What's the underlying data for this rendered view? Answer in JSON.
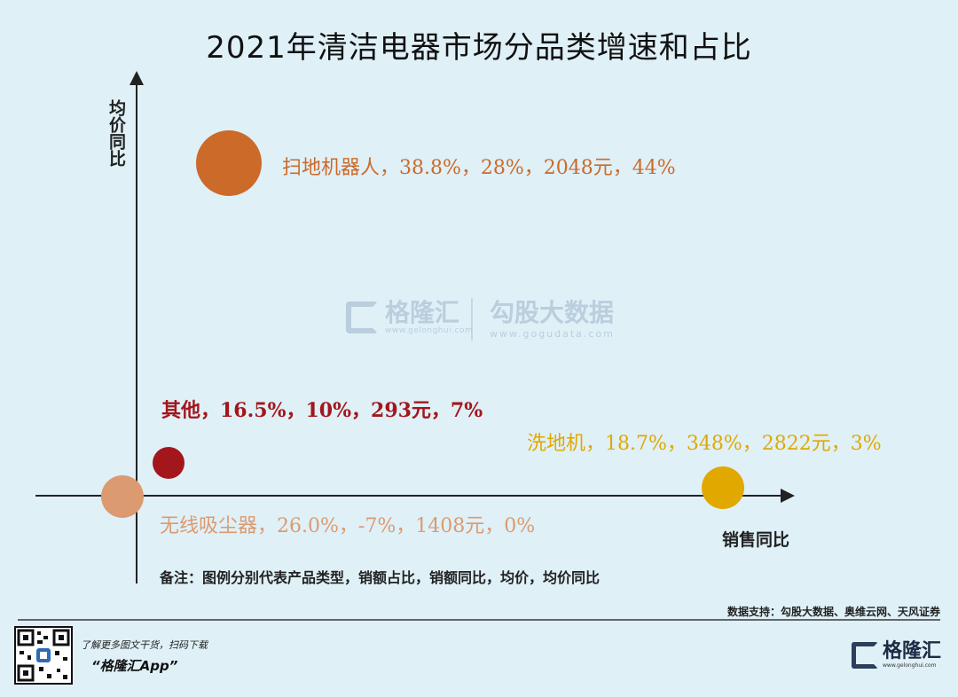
{
  "title": "2021年清洁电器市场分品类增速和占比",
  "chart_data": {
    "type": "scatter",
    "xlabel": "销售同比",
    "ylabel": "均价同比",
    "points": [
      {
        "label": "扫地机器人，38.8%，28%，2048元，44%",
        "x": 38.8,
        "y": 28,
        "price": 2048,
        "share": 44,
        "color": "#cc6a2a"
      },
      {
        "label": "其他，16.5%，10%，293元，7%",
        "x": 16.5,
        "y": 10,
        "price": 293,
        "share": 7,
        "color": "#a3161c"
      },
      {
        "label": "洗地机，18.7%，348%，2822元，3%",
        "x": 18.7,
        "y": 348,
        "price": 2822,
        "share": 3,
        "color": "#e1a800"
      },
      {
        "label": "无线吸尘器，26.0%，-7%，1408元，0%",
        "x": 26.0,
        "y": -7,
        "price": 1408,
        "share": 0,
        "color": "#dc9a70"
      }
    ]
  },
  "note": "备注：图例分别代表产品类型，销额占比，销额同比，均价，均价同比",
  "watermark": {
    "brand1": "格隆汇",
    "brand1_url": "www.gelonghui.com",
    "brand2": "勾股大数据",
    "brand2_url": "www.gogudata.com"
  },
  "source": "数据支持：勾股大数据、奥维云网、天风证券",
  "footer": {
    "promo_line1": "了解更多图文干货，扫码下载",
    "promo_line2": "“格隆汇App”",
    "logo_text": "格隆汇",
    "logo_sub": "www.gelonghui.com"
  }
}
